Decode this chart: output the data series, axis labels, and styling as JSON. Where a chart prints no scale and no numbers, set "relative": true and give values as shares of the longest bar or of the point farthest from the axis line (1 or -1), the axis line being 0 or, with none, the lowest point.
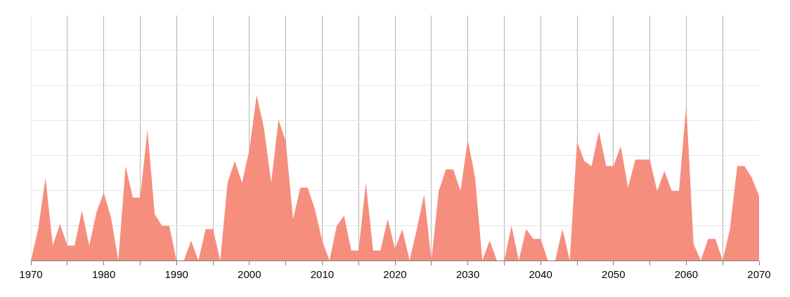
{
  "chart_data": {
    "type": "area",
    "relative": true,
    "grid": true,
    "x": [
      1970,
      1971,
      1972,
      1973,
      1974,
      1975,
      1976,
      1977,
      1978,
      1979,
      1980,
      1981,
      1982,
      1983,
      1984,
      1985,
      1986,
      1987,
      1988,
      1989,
      1990,
      1991,
      1992,
      1993,
      1994,
      1995,
      1996,
      1997,
      1998,
      1999,
      2000,
      2001,
      2002,
      2003,
      2004,
      2005,
      2006,
      2007,
      2008,
      2009,
      2010,
      2011,
      2012,
      2013,
      2014,
      2015,
      2016,
      2017,
      2018,
      2019,
      2020,
      2021,
      2022,
      2023,
      2024,
      2025,
      2026,
      2027,
      2028,
      2029,
      2030,
      2031,
      2032,
      2033,
      2034,
      2035,
      2036,
      2037,
      2038,
      2039,
      2040,
      2041,
      2042,
      2043,
      2044,
      2045,
      2046,
      2047,
      2048,
      2049,
      2050,
      2051,
      2052,
      2053,
      2054,
      2055,
      2056,
      2057,
      2058,
      2059,
      2060,
      2061,
      2062,
      2063,
      2064,
      2065,
      2066,
      2067,
      2068,
      2069,
      2070
    ],
    "series": [
      {
        "color": "#f68e7e",
        "values": [
          0,
          0.19,
          0.5,
          0.09,
          0.22,
          0.09,
          0.09,
          0.3,
          0.09,
          0.29,
          0.41,
          0.26,
          0,
          0.57,
          0.38,
          0.38,
          0.79,
          0.28,
          0.21,
          0.21,
          0,
          0,
          0.12,
          0,
          0.19,
          0.19,
          0,
          0.47,
          0.6,
          0.47,
          0.67,
          1,
          0.8,
          0.47,
          0.85,
          0.72,
          0.25,
          0.44,
          0.44,
          0.31,
          0.12,
          0,
          0.21,
          0.27,
          0.06,
          0.06,
          0.47,
          0.06,
          0.06,
          0.25,
          0.07,
          0.19,
          0,
          0.19,
          0.4,
          0,
          0.42,
          0.55,
          0.55,
          0.42,
          0.73,
          0.5,
          0,
          0.12,
          0,
          0,
          0.21,
          0,
          0.19,
          0.13,
          0.13,
          0,
          0,
          0.19,
          0,
          0.72,
          0.6,
          0.57,
          0.78,
          0.57,
          0.57,
          0.69,
          0.44,
          0.61,
          0.61,
          0.61,
          0.42,
          0.54,
          0.42,
          0.42,
          0.94,
          0.1,
          0,
          0.13,
          0.13,
          0,
          0.19,
          0.57,
          0.57,
          0.5,
          0.39
        ]
      }
    ],
    "xlim": [
      1970,
      2070
    ],
    "xticks": [
      1970,
      {
        "value": 1975,
        "label": null
      },
      1980,
      {
        "value": 1985,
        "label": null
      },
      1990,
      {
        "value": 1995,
        "label": null
      },
      2000,
      {
        "value": 2005,
        "label": null
      },
      2010,
      {
        "value": 2015,
        "label": null
      },
      2020,
      {
        "value": 2025,
        "label": null
      },
      2030,
      {
        "value": 2035,
        "label": null
      },
      2040,
      {
        "value": 2045,
        "label": null
      },
      2050,
      {
        "value": 2055,
        "label": null
      },
      2060,
      {
        "value": 2065,
        "label": null
      },
      2070
    ]
  }
}
